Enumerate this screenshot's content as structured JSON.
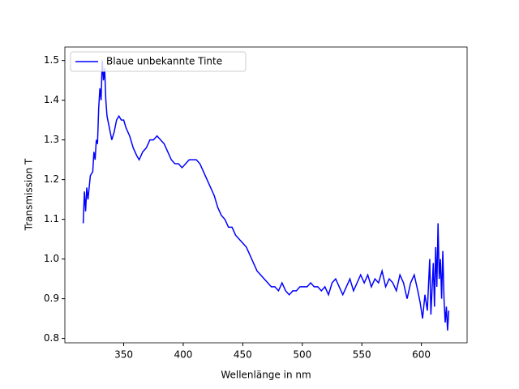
{
  "chart_data": {
    "type": "line",
    "xlabel": "Wellenlänge in nm",
    "ylabel": "Transmission T",
    "x": [
      316,
      317,
      318,
      319,
      320,
      322,
      324,
      325,
      326,
      327,
      328,
      329,
      330,
      331,
      332,
      333,
      334,
      335,
      336,
      338,
      340,
      342,
      344,
      346,
      348,
      350,
      352,
      355,
      358,
      361,
      363,
      366,
      369,
      372,
      375,
      378,
      381,
      384,
      387,
      390,
      393,
      396,
      399,
      402,
      405,
      408,
      411,
      414,
      417,
      420,
      423,
      426,
      429,
      432,
      435,
      438,
      441,
      444,
      447,
      450,
      453,
      456,
      459,
      462,
      465,
      468,
      471,
      474,
      477,
      480,
      483,
      486,
      489,
      492,
      495,
      498,
      501,
      504,
      507,
      510,
      513,
      516,
      519,
      522,
      525,
      528,
      531,
      534,
      537,
      540,
      543,
      546,
      549,
      552,
      555,
      558,
      561,
      564,
      567,
      570,
      573,
      576,
      579,
      582,
      585,
      588,
      591,
      594,
      597,
      599,
      601,
      603,
      605,
      607,
      608,
      610,
      611,
      612,
      613,
      614,
      615,
      616,
      617,
      618,
      619,
      620,
      621,
      622,
      623
    ],
    "series": [
      {
        "name": "Blaue unbekannte Tinte",
        "color": "#0000ff",
        "values": [
          1.09,
          1.17,
          1.12,
          1.18,
          1.15,
          1.21,
          1.22,
          1.27,
          1.25,
          1.3,
          1.29,
          1.38,
          1.43,
          1.4,
          1.5,
          1.45,
          1.48,
          1.4,
          1.36,
          1.33,
          1.3,
          1.32,
          1.35,
          1.36,
          1.35,
          1.35,
          1.33,
          1.31,
          1.28,
          1.26,
          1.25,
          1.27,
          1.28,
          1.3,
          1.3,
          1.31,
          1.3,
          1.29,
          1.27,
          1.25,
          1.24,
          1.24,
          1.23,
          1.24,
          1.25,
          1.25,
          1.25,
          1.24,
          1.22,
          1.2,
          1.18,
          1.16,
          1.13,
          1.11,
          1.1,
          1.08,
          1.08,
          1.06,
          1.05,
          1.04,
          1.03,
          1.01,
          0.99,
          0.97,
          0.96,
          0.95,
          0.94,
          0.93,
          0.93,
          0.92,
          0.94,
          0.92,
          0.91,
          0.92,
          0.92,
          0.93,
          0.93,
          0.93,
          0.94,
          0.93,
          0.93,
          0.92,
          0.93,
          0.91,
          0.94,
          0.95,
          0.93,
          0.91,
          0.93,
          0.95,
          0.92,
          0.94,
          0.96,
          0.94,
          0.96,
          0.93,
          0.95,
          0.94,
          0.97,
          0.93,
          0.95,
          0.94,
          0.92,
          0.96,
          0.94,
          0.9,
          0.94,
          0.96,
          0.92,
          0.89,
          0.85,
          0.91,
          0.87,
          1.0,
          0.86,
          0.99,
          0.88,
          1.03,
          0.93,
          1.09,
          0.95,
          1.0,
          0.9,
          1.02,
          0.9,
          0.84,
          0.88,
          0.82,
          0.87
        ]
      }
    ],
    "xlim": [
      300.6,
      638.4
    ],
    "ylim": [
      0.789,
      1.534
    ],
    "xticks": [
      350,
      400,
      450,
      500,
      550,
      600
    ],
    "yticks": [
      0.8,
      0.9,
      {
        "value": 1,
        "label": "1.0"
      },
      1.1,
      1.2,
      1.3,
      1.4,
      1.5
    ],
    "legend": "upper left"
  }
}
